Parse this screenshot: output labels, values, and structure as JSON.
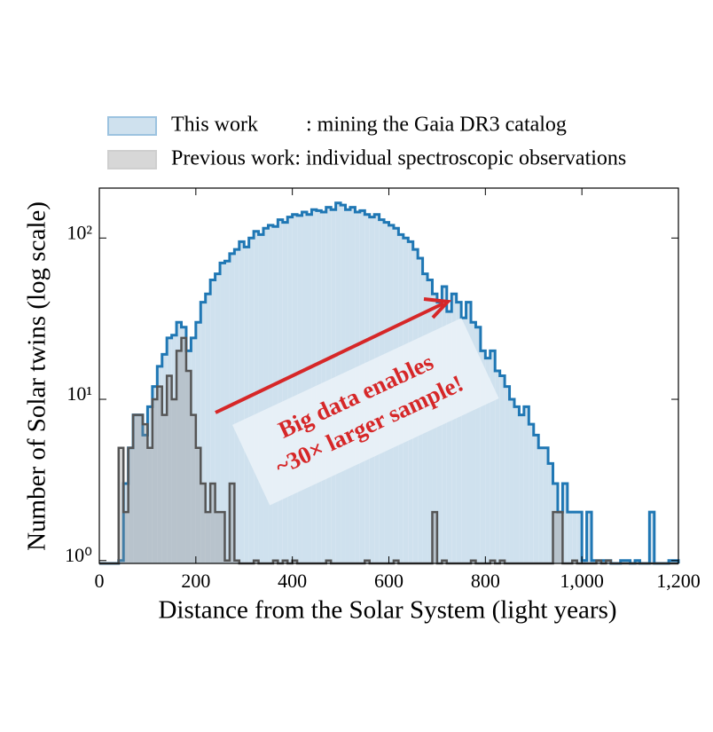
{
  "chart_data": {
    "type": "histogram",
    "xlabel": "Distance from the Solar System  (light years)",
    "ylabel": "Number of Solar twins (log scale)",
    "bins": [
      0,
      10,
      20,
      30,
      40,
      50,
      60,
      70,
      80,
      90,
      100,
      110,
      120,
      130,
      140,
      150,
      160,
      170,
      180,
      190,
      200,
      210,
      220,
      230,
      240,
      250,
      260,
      270,
      280,
      290,
      300,
      310,
      320,
      330,
      340,
      350,
      360,
      370,
      380,
      390,
      400,
      410,
      420,
      430,
      440,
      450,
      460,
      470,
      480,
      490,
      500,
      510,
      520,
      530,
      540,
      550,
      560,
      570,
      580,
      590,
      600,
      610,
      620,
      630,
      640,
      650,
      660,
      670,
      680,
      690,
      700,
      710,
      720,
      730,
      740,
      750,
      760,
      770,
      780,
      790,
      800,
      810,
      820,
      830,
      840,
      850,
      860,
      870,
      880,
      890,
      900,
      910,
      920,
      930,
      940,
      950,
      960,
      970,
      980,
      990,
      1000,
      1010,
      1020,
      1030,
      1040,
      1050,
      1060,
      1070,
      1080,
      1090,
      1100,
      1110,
      1120,
      1130,
      1140,
      1150,
      1160,
      1170,
      1180,
      1190,
      1200
    ],
    "series": [
      {
        "name": "This work",
        "note": ": mining the Gaia DR3 catalog",
        "color": "#1f77b4",
        "fill": "#cfe1ee",
        "values": [
          0,
          0,
          0,
          0,
          1,
          3,
          5,
          8,
          8,
          6,
          9,
          12,
          16,
          19,
          24,
          25,
          30,
          28,
          20,
          24,
          30,
          40,
          45,
          55,
          60,
          70,
          72,
          80,
          85,
          95,
          88,
          100,
          110,
          105,
          115,
          120,
          118,
          130,
          125,
          135,
          140,
          138,
          145,
          140,
          150,
          148,
          145,
          155,
          150,
          165,
          160,
          150,
          155,
          145,
          148,
          140,
          135,
          140,
          130,
          125,
          120,
          115,
          105,
          100,
          95,
          85,
          75,
          60,
          55,
          45,
          40,
          50,
          35,
          45,
          40,
          32,
          40,
          30,
          28,
          20,
          18,
          20,
          15,
          14,
          12,
          10,
          9,
          8,
          9,
          7,
          6,
          5,
          5,
          4,
          3,
          2,
          3,
          2,
          2,
          2,
          1,
          2,
          1,
          1,
          1,
          1,
          0,
          0,
          1,
          1,
          0,
          1,
          0,
          0,
          2,
          0,
          0,
          0,
          1,
          1
        ]
      },
      {
        "name": "Previous work",
        "note": ": individual spectroscopic observations",
        "color": "#555555",
        "fill": "rgba(140,140,140,0.35)",
        "values": [
          0,
          0,
          0,
          0,
          5,
          2,
          5,
          8,
          8,
          7,
          5,
          10,
          12,
          8,
          14,
          10,
          20,
          24,
          15,
          8,
          5,
          3,
          2,
          3,
          2,
          2,
          1,
          3,
          1,
          0,
          0,
          0,
          1,
          0,
          0,
          0,
          1,
          0,
          1,
          0,
          1,
          0,
          0,
          0,
          0,
          0,
          0,
          1,
          0,
          0,
          0,
          0,
          0,
          0,
          0,
          1,
          0,
          0,
          0,
          0,
          0,
          1,
          0,
          0,
          0,
          0,
          0,
          0,
          0,
          2,
          0,
          1,
          0,
          0,
          0,
          0,
          0,
          1,
          0,
          0,
          0,
          1,
          0,
          1,
          0,
          0,
          0,
          0,
          0,
          0,
          0,
          0,
          0,
          0,
          2,
          2,
          0,
          0,
          1,
          0,
          0,
          0,
          0,
          1,
          0,
          1,
          0,
          0,
          0,
          0,
          0,
          0,
          0,
          0,
          0,
          0,
          0,
          0,
          0,
          0
        ]
      }
    ],
    "xlim": [
      0,
      1200
    ],
    "xticks": [
      0,
      200,
      400,
      600,
      800,
      {
        "value": 1000,
        "label": "1,000"
      },
      {
        "value": 1200,
        "label": "1,200"
      }
    ],
    "ylim": [
      0.96,
      204
    ],
    "yticks": [
      {
        "value": 1,
        "label": "10⁰"
      },
      {
        "value": 10,
        "label": "10¹"
      },
      {
        "value": 100,
        "label": "10²"
      }
    ],
    "log_y": true,
    "annotation": [
      "Big data enables",
      "~30× larger sample!"
    ]
  }
}
